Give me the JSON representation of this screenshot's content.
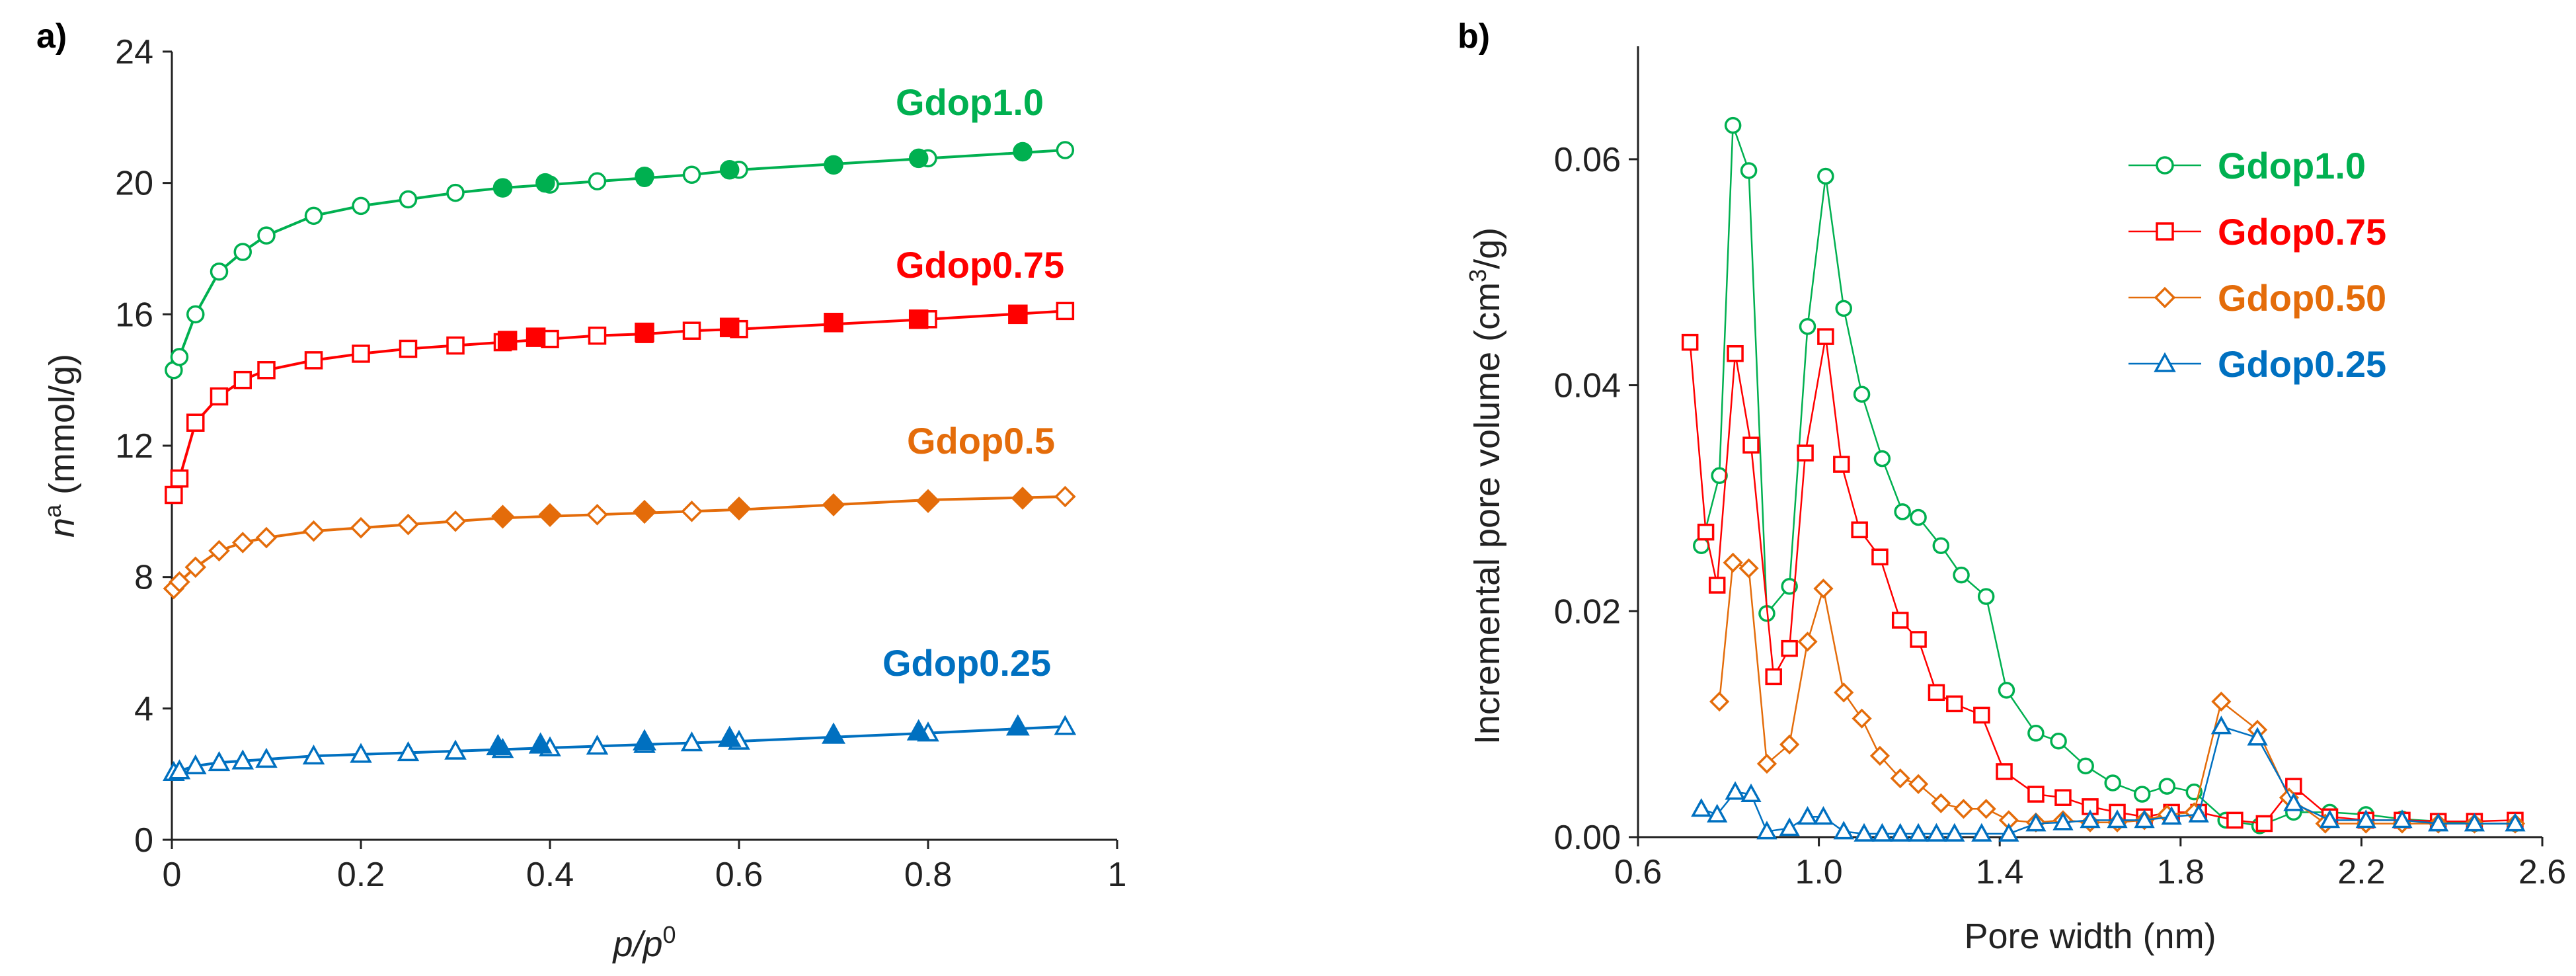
{
  "chart_data": [
    {
      "panel_label": "a)",
      "type": "line",
      "xlabel_main": "p/p",
      "xlabel_sup": "0",
      "ylabel_main": "n",
      "ylabel_sup": "a",
      "ylabel_rest": " (mmol/g)",
      "xlim": [
        0,
        1
      ],
      "ylim": [
        0,
        24
      ],
      "xticks": [
        "0",
        "0.2",
        "0.4",
        "0.6",
        "0.8",
        "1"
      ],
      "yticks": [
        "0",
        "4",
        "8",
        "12",
        "16",
        "20",
        "24"
      ],
      "series": [
        {
          "name": "Gdop1.0",
          "color": "#00b050",
          "marker": "circle",
          "adsorption": [
            [
              0.002,
              14.3
            ],
            [
              0.008,
              14.7
            ],
            [
              0.025,
              16.0
            ],
            [
              0.05,
              17.3
            ],
            [
              0.075,
              17.9
            ],
            [
              0.1,
              18.4
            ],
            [
              0.15,
              19.0
            ],
            [
              0.2,
              19.3
            ],
            [
              0.25,
              19.5
            ],
            [
              0.3,
              19.7
            ],
            [
              0.35,
              19.85
            ],
            [
              0.4,
              19.95
            ],
            [
              0.45,
              20.05
            ],
            [
              0.5,
              20.15
            ],
            [
              0.55,
              20.25
            ],
            [
              0.6,
              20.4
            ],
            [
              0.8,
              20.75
            ],
            [
              0.945,
              21.0
            ]
          ],
          "desorption": [
            [
              0.9,
              20.95
            ],
            [
              0.79,
              20.75
            ],
            [
              0.7,
              20.55
            ],
            [
              0.59,
              20.4
            ],
            [
              0.5,
              20.2
            ],
            [
              0.395,
              20.0
            ],
            [
              0.35,
              19.85
            ]
          ]
        },
        {
          "name": "Gdop0.75",
          "color": "#ff0000",
          "marker": "square",
          "adsorption": [
            [
              0.002,
              10.5
            ],
            [
              0.008,
              11.0
            ],
            [
              0.025,
              12.7
            ],
            [
              0.05,
              13.5
            ],
            [
              0.075,
              14.0
            ],
            [
              0.1,
              14.3
            ],
            [
              0.15,
              14.6
            ],
            [
              0.2,
              14.8
            ],
            [
              0.25,
              14.95
            ],
            [
              0.3,
              15.05
            ],
            [
              0.35,
              15.15
            ],
            [
              0.4,
              15.25
            ],
            [
              0.45,
              15.35
            ],
            [
              0.5,
              15.4
            ],
            [
              0.55,
              15.5
            ],
            [
              0.6,
              15.55
            ],
            [
              0.8,
              15.85
            ],
            [
              0.945,
              16.1
            ]
          ],
          "desorption": [
            [
              0.895,
              16.0
            ],
            [
              0.79,
              15.85
            ],
            [
              0.7,
              15.75
            ],
            [
              0.59,
              15.6
            ],
            [
              0.5,
              15.45
            ],
            [
              0.385,
              15.3
            ],
            [
              0.355,
              15.2
            ]
          ]
        },
        {
          "name": "Gdop0.5",
          "color": "#e46c0a",
          "marker": "diamond",
          "adsorption": [
            [
              0.002,
              7.65
            ],
            [
              0.008,
              7.85
            ],
            [
              0.025,
              8.3
            ],
            [
              0.05,
              8.8
            ],
            [
              0.075,
              9.05
            ],
            [
              0.1,
              9.2
            ],
            [
              0.15,
              9.4
            ],
            [
              0.2,
              9.5
            ],
            [
              0.25,
              9.6
            ],
            [
              0.3,
              9.7
            ],
            [
              0.35,
              9.8
            ],
            [
              0.4,
              9.85
            ],
            [
              0.45,
              9.9
            ],
            [
              0.5,
              9.95
            ],
            [
              0.55,
              10.0
            ],
            [
              0.6,
              10.05
            ],
            [
              0.8,
              10.35
            ],
            [
              0.945,
              10.45
            ]
          ],
          "desorption": [
            [
              0.9,
              10.4
            ],
            [
              0.8,
              10.3
            ],
            [
              0.7,
              10.2
            ],
            [
              0.6,
              10.1
            ],
            [
              0.5,
              10.0
            ],
            [
              0.4,
              9.9
            ],
            [
              0.35,
              9.85
            ]
          ]
        },
        {
          "name": "Gdop0.25",
          "color": "#0070c0",
          "marker": "triangle",
          "adsorption": [
            [
              0.002,
              2.05
            ],
            [
              0.008,
              2.1
            ],
            [
              0.025,
              2.25
            ],
            [
              0.05,
              2.35
            ],
            [
              0.075,
              2.4
            ],
            [
              0.1,
              2.45
            ],
            [
              0.15,
              2.55
            ],
            [
              0.2,
              2.6
            ],
            [
              0.25,
              2.65
            ],
            [
              0.3,
              2.7
            ],
            [
              0.35,
              2.75
            ],
            [
              0.4,
              2.8
            ],
            [
              0.45,
              2.85
            ],
            [
              0.5,
              2.9
            ],
            [
              0.55,
              2.95
            ],
            [
              0.6,
              3.0
            ],
            [
              0.8,
              3.25
            ],
            [
              0.945,
              3.45
            ]
          ],
          "desorption": [
            [
              0.895,
              3.45
            ],
            [
              0.79,
              3.3
            ],
            [
              0.7,
              3.2
            ],
            [
              0.59,
              3.1
            ],
            [
              0.5,
              3.0
            ],
            [
              0.39,
              2.9
            ],
            [
              0.345,
              2.85
            ]
          ]
        }
      ]
    },
    {
      "panel_label": "b)",
      "type": "line",
      "xlabel": "Pore width (nm)",
      "ylabel_main": "Incremental pore volume (cm",
      "ylabel_sup": "3",
      "ylabel_rest": "/g)",
      "xlim": [
        0.6,
        2.6
      ],
      "ylim": [
        0,
        0.07
      ],
      "xticks": [
        "0.6",
        "1.0",
        "1.4",
        "1.8",
        "2.2",
        "2.6"
      ],
      "yticks": [
        "0.00",
        "0.02",
        "0.04",
        "0.06"
      ],
      "legend_position": "top-right",
      "series": [
        {
          "name": "Gdop1.0",
          "color": "#00b050",
          "marker": "circle",
          "points": [
            [
              0.74,
              0.0258
            ],
            [
              0.78,
              0.032
            ],
            [
              0.81,
              0.063
            ],
            [
              0.845,
              0.059
            ],
            [
              0.885,
              0.0198
            ],
            [
              0.935,
              0.0222
            ],
            [
              0.975,
              0.0452
            ],
            [
              1.015,
              0.0585
            ],
            [
              1.055,
              0.0468
            ],
            [
              1.095,
              0.0392
            ],
            [
              1.14,
              0.0335
            ],
            [
              1.185,
              0.0288
            ],
            [
              1.22,
              0.0283
            ],
            [
              1.27,
              0.0258
            ],
            [
              1.315,
              0.0232
            ],
            [
              1.37,
              0.0213
            ],
            [
              1.415,
              0.013
            ],
            [
              1.48,
              0.0092
            ],
            [
              1.53,
              0.0085
            ],
            [
              1.59,
              0.0063
            ],
            [
              1.65,
              0.0048
            ],
            [
              1.715,
              0.0038
            ],
            [
              1.77,
              0.0045
            ],
            [
              1.83,
              0.004
            ],
            [
              1.9,
              0.0015
            ],
            [
              1.975,
              0.001
            ],
            [
              2.05,
              0.0022
            ],
            [
              2.13,
              0.0022
            ],
            [
              2.21,
              0.002
            ],
            [
              2.29,
              0.0016
            ],
            [
              2.37,
              0.0014
            ],
            [
              2.45,
              0.0012
            ],
            [
              2.54,
              0.0012
            ]
          ]
        },
        {
          "name": "Gdop0.75",
          "color": "#ff0000",
          "marker": "square",
          "points": [
            [
              0.715,
              0.0438
            ],
            [
              0.75,
              0.027
            ],
            [
              0.775,
              0.0223
            ],
            [
              0.815,
              0.0428
            ],
            [
              0.85,
              0.0347
            ],
            [
              0.9,
              0.0142
            ],
            [
              0.935,
              0.0167
            ],
            [
              0.97,
              0.034
            ],
            [
              1.015,
              0.0443
            ],
            [
              1.05,
              0.033
            ],
            [
              1.09,
              0.0272
            ],
            [
              1.135,
              0.0248
            ],
            [
              1.18,
              0.0192
            ],
            [
              1.22,
              0.0175
            ],
            [
              1.26,
              0.0128
            ],
            [
              1.3,
              0.0118
            ],
            [
              1.36,
              0.0108
            ],
            [
              1.41,
              0.0058
            ],
            [
              1.48,
              0.0038
            ],
            [
              1.54,
              0.0035
            ],
            [
              1.6,
              0.0027
            ],
            [
              1.66,
              0.0022
            ],
            [
              1.72,
              0.0018
            ],
            [
              1.78,
              0.0022
            ],
            [
              1.84,
              0.0022
            ],
            [
              1.92,
              0.0015
            ],
            [
              1.985,
              0.0012
            ],
            [
              2.05,
              0.0045
            ],
            [
              2.13,
              0.0018
            ],
            [
              2.21,
              0.0015
            ],
            [
              2.29,
              0.0015
            ],
            [
              2.37,
              0.0014
            ],
            [
              2.45,
              0.0014
            ],
            [
              2.54,
              0.0015
            ]
          ]
        },
        {
          "name": "Gdop0.50",
          "color": "#e46c0a",
          "marker": "diamond",
          "points": [
            [
              0.78,
              0.012
            ],
            [
              0.81,
              0.0243
            ],
            [
              0.845,
              0.0238
            ],
            [
              0.885,
              0.0065
            ],
            [
              0.935,
              0.0082
            ],
            [
              0.975,
              0.0173
            ],
            [
              1.01,
              0.022
            ],
            [
              1.055,
              0.0128
            ],
            [
              1.095,
              0.0105
            ],
            [
              1.135,
              0.0072
            ],
            [
              1.18,
              0.0052
            ],
            [
              1.22,
              0.0047
            ],
            [
              1.27,
              0.003
            ],
            [
              1.32,
              0.0025
            ],
            [
              1.37,
              0.0025
            ],
            [
              1.42,
              0.0015
            ],
            [
              1.48,
              0.0013
            ],
            [
              1.54,
              0.0015
            ],
            [
              1.6,
              0.0013
            ],
            [
              1.66,
              0.0013
            ],
            [
              1.72,
              0.0015
            ],
            [
              1.77,
              0.002
            ],
            [
              1.83,
              0.0022
            ],
            [
              1.89,
              0.012
            ],
            [
              1.97,
              0.0095
            ],
            [
              2.04,
              0.0035
            ],
            [
              2.12,
              0.0012
            ],
            [
              2.21,
              0.0012
            ],
            [
              2.29,
              0.0012
            ],
            [
              2.37,
              0.0012
            ],
            [
              2.45,
              0.0012
            ],
            [
              2.54,
              0.0012
            ]
          ]
        },
        {
          "name": "Gdop0.25",
          "color": "#0070c0",
          "marker": "triangle",
          "points": [
            [
              0.74,
              0.0025
            ],
            [
              0.775,
              0.002
            ],
            [
              0.815,
              0.004
            ],
            [
              0.85,
              0.0038
            ],
            [
              0.885,
              0.0005
            ],
            [
              0.935,
              0.0008
            ],
            [
              0.975,
              0.0018
            ],
            [
              1.01,
              0.0018
            ],
            [
              1.055,
              0.0005
            ],
            [
              1.1,
              0.0003
            ],
            [
              1.14,
              0.0003
            ],
            [
              1.18,
              0.0003
            ],
            [
              1.22,
              0.0003
            ],
            [
              1.26,
              0.0003
            ],
            [
              1.3,
              0.0003
            ],
            [
              1.36,
              0.0003
            ],
            [
              1.42,
              0.0003
            ],
            [
              1.48,
              0.0012
            ],
            [
              1.54,
              0.0013
            ],
            [
              1.6,
              0.0015
            ],
            [
              1.66,
              0.0015
            ],
            [
              1.72,
              0.0015
            ],
            [
              1.78,
              0.0018
            ],
            [
              1.84,
              0.002
            ],
            [
              1.89,
              0.0098
            ],
            [
              1.97,
              0.0088
            ],
            [
              2.05,
              0.003
            ],
            [
              2.13,
              0.0015
            ],
            [
              2.21,
              0.0015
            ],
            [
              2.29,
              0.0015
            ],
            [
              2.37,
              0.0012
            ],
            [
              2.45,
              0.0012
            ],
            [
              2.54,
              0.0012
            ]
          ]
        }
      ]
    }
  ]
}
